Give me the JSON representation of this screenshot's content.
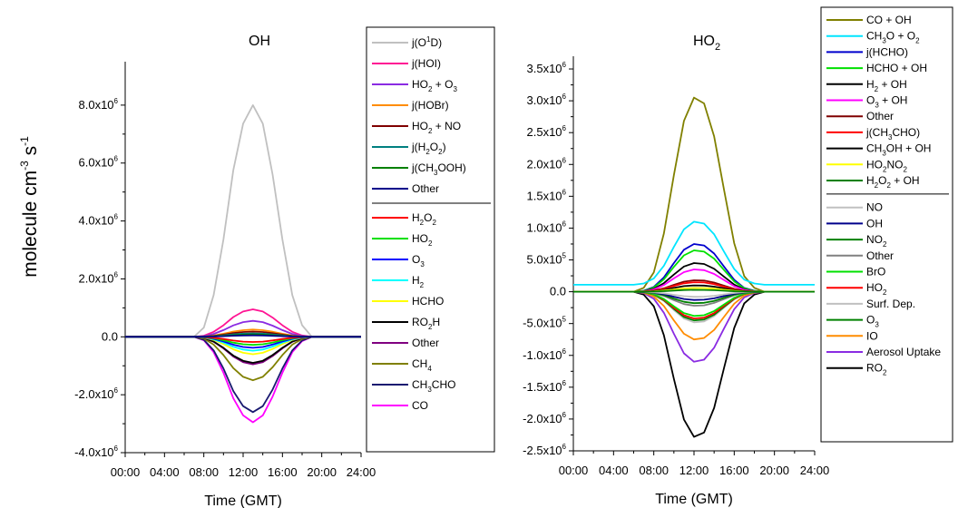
{
  "figure": {
    "ylabel_main": "molecule cm",
    "ylabel_exp1": "-3",
    "ylabel_mid": " s",
    "ylabel_exp2": "-1"
  },
  "chart_data": [
    {
      "type": "line",
      "title": "OH",
      "xlabel": "Time (GMT)",
      "x": [
        0,
        1,
        2,
        3,
        4,
        5,
        6,
        7,
        8,
        9,
        10,
        11,
        12,
        13,
        14,
        15,
        16,
        17,
        18,
        19,
        20,
        21,
        22,
        23,
        24
      ],
      "xlim": [
        0,
        24
      ],
      "xticks": [
        "00:00",
        "04:00",
        "08:00",
        "12:00",
        "16:00",
        "20:00",
        "24:00"
      ],
      "ylim": [
        -4000000,
        9500000
      ],
      "yticks": [
        {
          "v": 8000000,
          "b": "8.0x10",
          "e": "6"
        },
        {
          "v": 6000000,
          "b": "6.0x10",
          "e": "6"
        },
        {
          "v": 4000000,
          "b": "4.0x10",
          "e": "6"
        },
        {
          "v": 2000000,
          "b": "2.0x10",
          "e": "6"
        },
        {
          "v": 0,
          "b": "0.0",
          "e": ""
        },
        {
          "v": -2000000,
          "b": "-2.0x10",
          "e": "6"
        },
        {
          "v": -4000000,
          "b": "-4.0x10",
          "e": "6"
        }
      ],
      "shape": [
        0,
        0,
        0,
        0,
        0,
        0,
        0,
        0,
        0.04,
        0.18,
        0.42,
        0.72,
        0.92,
        1,
        0.92,
        0.7,
        0.42,
        0.18,
        0.05,
        0,
        0,
        0,
        0,
        0,
        0
      ],
      "legend_separator_after": 7,
      "series": [
        {
          "name": "j(O",
          "sup": "1",
          "rest": "D)",
          "color": "#c0c0c0",
          "peak": 8000000
        },
        {
          "name": "j(HOI)",
          "color": "#ff1493",
          "peak": 950000
        },
        {
          "name": "HO",
          "sub": "2",
          "rest": " + O",
          "sub2": "3",
          "color": "#8a2be2",
          "peak": 550000
        },
        {
          "name": "j(HOBr)",
          "color": "#ff8c00",
          "peak": 250000
        },
        {
          "name": "HO",
          "sub": "2",
          "rest": " + NO",
          "color": "#800000",
          "peak": 180000
        },
        {
          "name": "j(H",
          "sub": "2",
          "rest": "O",
          "sub2": "2",
          "rest2": ")",
          "color": "#008080",
          "peak": 120000
        },
        {
          "name": "j(CH",
          "sub": "3",
          "rest": "OOH)",
          "color": "#008000",
          "peak": 80000
        },
        {
          "name": "Other",
          "color": "#00008b",
          "peak": 50000
        },
        {
          "name": "H",
          "sub": "2",
          "rest": "O",
          "sub2": "2",
          "color": "#ff0000",
          "peak": -180000
        },
        {
          "name": "HO",
          "sub": "2",
          "color": "#00e000",
          "peak": -280000
        },
        {
          "name": "O",
          "sub": "3",
          "color": "#0000ff",
          "peak": -380000
        },
        {
          "name": "H",
          "sub": "2",
          "color": "#00ffff",
          "peak": -480000
        },
        {
          "name": "HCHO",
          "color": "#ffff00",
          "peak": -600000
        },
        {
          "name": "RO",
          "sub": "2",
          "rest": "H",
          "color": "#000000",
          "peak": -900000
        },
        {
          "name": "Other",
          "color": "#800080",
          "peak": -950000
        },
        {
          "name": "CH",
          "sub": "4",
          "color": "#808000",
          "peak": -1500000
        },
        {
          "name": "CH",
          "sub": "3",
          "rest": "CHO",
          "color": "#191970",
          "peak": -2600000
        },
        {
          "name": "CO",
          "color": "#ff00ff",
          "peak": -2950000
        }
      ]
    },
    {
      "type": "line",
      "title": "HO",
      "title_sub": "2",
      "xlabel": "Time (GMT)",
      "x": [
        0,
        1,
        2,
        3,
        4,
        5,
        6,
        7,
        8,
        9,
        10,
        11,
        12,
        13,
        14,
        15,
        16,
        17,
        18,
        19,
        20,
        21,
        22,
        23,
        24
      ],
      "xlim": [
        0,
        24
      ],
      "xticks": [
        "00:00",
        "04:00",
        "08:00",
        "12:00",
        "16:00",
        "20:00",
        "24:00"
      ],
      "ylim": [
        -2500000,
        3700000
      ],
      "yticks": [
        {
          "v": 3500000,
          "b": "3.5x10",
          "e": "6"
        },
        {
          "v": 3000000,
          "b": "3.0x10",
          "e": "6"
        },
        {
          "v": 2500000,
          "b": "2.5x10",
          "e": "6"
        },
        {
          "v": 2000000,
          "b": "2.0x10",
          "e": "6"
        },
        {
          "v": 1500000,
          "b": "1.5x10",
          "e": "6"
        },
        {
          "v": 1000000,
          "b": "1.0x10",
          "e": "6"
        },
        {
          "v": 500000,
          "b": "5.0x10",
          "e": "5"
        },
        {
          "v": 0,
          "b": "0.0",
          "e": ""
        },
        {
          "v": -500000,
          "b": "-5.0x10",
          "e": "5"
        },
        {
          "v": -1000000,
          "b": "-1.0x10",
          "e": "6"
        },
        {
          "v": -1500000,
          "b": "-1.5x10",
          "e": "6"
        },
        {
          "v": -2000000,
          "b": "-2.0x10",
          "e": "6"
        },
        {
          "v": -2500000,
          "b": "-2.5x10",
          "e": "6"
        }
      ],
      "shape": [
        0,
        0,
        0,
        0,
        0,
        0,
        0,
        0.02,
        0.1,
        0.3,
        0.6,
        0.88,
        1,
        0.97,
        0.8,
        0.52,
        0.25,
        0.08,
        0.02,
        0,
        0,
        0,
        0,
        0,
        0
      ],
      "legend_separator_after": 10,
      "series": [
        {
          "name": "CO + OH",
          "color": "#808000",
          "peak": 3050000
        },
        {
          "name": "CH",
          "sub": "3",
          "rest": "O + O",
          "sub2": "2",
          "color": "#00e5ff",
          "peak": 1100000,
          "base": 110000
        },
        {
          "name": "j(HCHO)",
          "color": "#0000cd",
          "peak": 750000
        },
        {
          "name": "HCHO + OH",
          "color": "#00e000",
          "peak": 650000
        },
        {
          "name": "H",
          "sub": "2",
          "rest": " + OH",
          "color": "#000000",
          "peak": 450000
        },
        {
          "name": "O",
          "sub": "3",
          "rest": " + OH",
          "color": "#ff00ff",
          "peak": 350000
        },
        {
          "name": "Other",
          "color": "#800000",
          "peak": 180000
        },
        {
          "name": "j(CH",
          "sub": "3",
          "rest": "CHO)",
          "color": "#ff0000",
          "peak": 150000
        },
        {
          "name": "CH",
          "sub": "3",
          "rest": "OH + OH",
          "color": "#000000",
          "peak": 100000
        },
        {
          "name": "HO",
          "sub": "2",
          "rest": "NO",
          "sub2": "2",
          "color": "#ffff00",
          "peak": 60000
        },
        {
          "name": "H",
          "sub": "2",
          "rest": "O",
          "sub2": "2",
          "rest2": " + OH",
          "color": "#008000",
          "peak": 30000
        },
        {
          "name": "NO",
          "color": "#c0c0c0",
          "peak": -80000
        },
        {
          "name": "OH",
          "color": "#00008b",
          "peak": -130000
        },
        {
          "name": "NO",
          "sub": "2",
          "color": "#008000",
          "peak": -180000
        },
        {
          "name": "Other",
          "color": "#808080",
          "peak": -220000
        },
        {
          "name": "BrO",
          "color": "#00e000",
          "peak": -380000
        },
        {
          "name": "HO",
          "sub": "2",
          "color": "#ff0000",
          "peak": -420000
        },
        {
          "name": "Surf. Dep.",
          "color": "#c0c0c0",
          "peak": -480000
        },
        {
          "name": "O",
          "sub": "3",
          "color": "#008000",
          "peak": -450000
        },
        {
          "name": "IO",
          "color": "#ff8c00",
          "peak": -750000
        },
        {
          "name": "Aerosol Uptake",
          "color": "#8a2be2",
          "peak": -1100000
        },
        {
          "name": "RO",
          "sub": "2",
          "color": "#000000",
          "peak": -2280000
        }
      ]
    }
  ]
}
